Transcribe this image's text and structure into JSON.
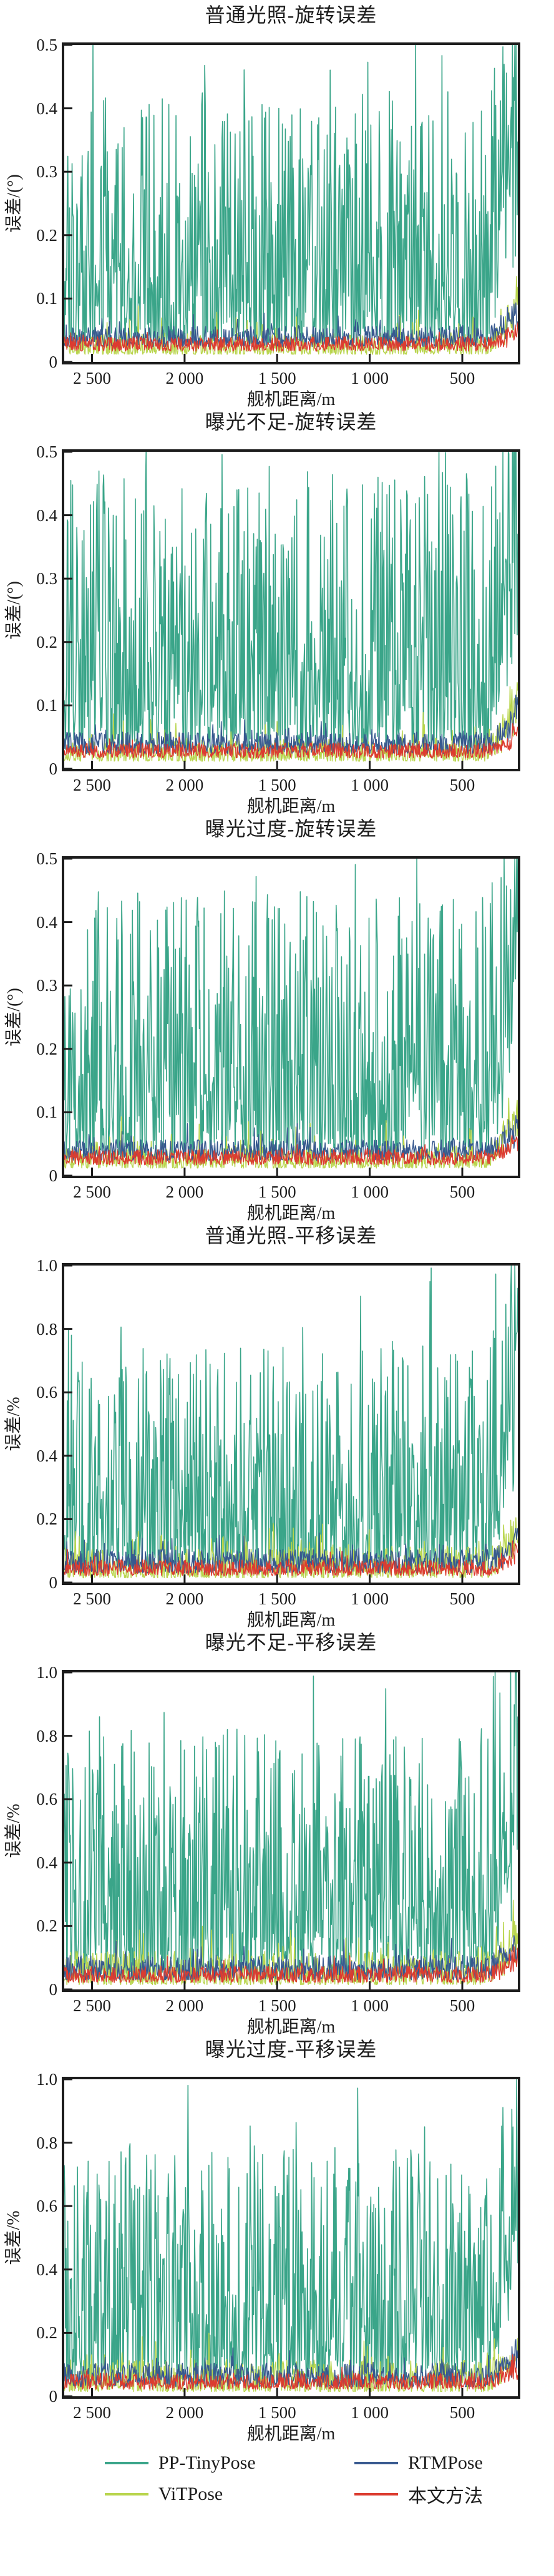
{
  "figure": {
    "background": "#ffffff"
  },
  "colors": {
    "axis": "#1c1c1c",
    "text": "#1c1c1c",
    "pp_tinypose": "#3aa589",
    "vitpose": "#b9d54e",
    "rtmpose": "#38598f",
    "ours": "#dc3c30"
  },
  "legend": {
    "items": [
      {
        "label": "PP-TinyPose",
        "color": "#3aa589"
      },
      {
        "label": "ViTPose",
        "color": "#b9d54e"
      },
      {
        "label": "RTMPose",
        "color": "#38598f"
      },
      {
        "label": "本文方法",
        "color": "#dc3c30"
      }
    ]
  },
  "chart_data": [
    {
      "type": "line",
      "title": "普通光照-旋转误差",
      "xlabel": "舰机距离/m",
      "ylabel": "误差/(°)",
      "x_axis": {
        "min": 2650,
        "max": 200,
        "reversed": true,
        "ticks": [
          2500,
          2000,
          1500,
          1000,
          500
        ],
        "tick_labels": [
          "2 500",
          "2 000",
          "1 500",
          "1 000",
          "500"
        ]
      },
      "y_axis": {
        "min": 0,
        "max": 0.5,
        "ticks": [
          0,
          0.1,
          0.2,
          0.3,
          0.4,
          0.5
        ],
        "tick_labels": [
          "0",
          "0.1",
          "0.2",
          "0.3",
          "0.4",
          "0.5"
        ]
      },
      "grid": false,
      "series": [
        {
          "name": "PP-TinyPose",
          "color": "#3aa589",
          "seed": 101,
          "n": 760,
          "base": 0.03,
          "amp": 0.4,
          "power": 2.3,
          "spike_prob": 0.08,
          "spike_amp": 0.15,
          "end_rise": 0.45
        },
        {
          "name": "ViTPose",
          "color": "#b9d54e",
          "seed": 102,
          "n": 700,
          "base": 0.012,
          "amp": 0.034,
          "power": 1.8,
          "spike_prob": 0.05,
          "spike_amp": 0.05,
          "end_rise": 0.1
        },
        {
          "name": "RTMPose",
          "color": "#38598f",
          "seed": 103,
          "n": 700,
          "base": 0.024,
          "amp": 0.032,
          "power": 1.4,
          "spike_prob": 0.04,
          "spike_amp": 0.028,
          "end_rise": 0.07
        },
        {
          "name": "本文方法",
          "color": "#dc3c30",
          "seed": 104,
          "n": 700,
          "base": 0.017,
          "amp": 0.023,
          "power": 1.3,
          "spike_prob": 0.02,
          "spike_amp": 0.02,
          "end_rise": 0.035
        }
      ]
    },
    {
      "type": "line",
      "title": "曝光不足-旋转误差",
      "xlabel": "舰机距离/m",
      "ylabel": "误差/(°)",
      "x_axis": {
        "min": 2650,
        "max": 200,
        "reversed": true,
        "ticks": [
          2500,
          2000,
          1500,
          1000,
          500
        ],
        "tick_labels": [
          "2 500",
          "2 000",
          "1 500",
          "1 000",
          "500"
        ]
      },
      "y_axis": {
        "min": 0,
        "max": 0.5,
        "ticks": [
          0,
          0.1,
          0.2,
          0.3,
          0.4,
          0.5
        ],
        "tick_labels": [
          "0",
          "0.1",
          "0.2",
          "0.3",
          "0.4",
          "0.5"
        ]
      },
      "grid": false,
      "series": [
        {
          "name": "PP-TinyPose",
          "color": "#3aa589",
          "seed": 201,
          "n": 760,
          "base": 0.03,
          "amp": 0.44,
          "power": 2.1,
          "spike_prob": 0.08,
          "spike_amp": 0.15,
          "end_rise": 0.42
        },
        {
          "name": "ViTPose",
          "color": "#b9d54e",
          "seed": 202,
          "n": 700,
          "base": 0.012,
          "amp": 0.036,
          "power": 1.8,
          "spike_prob": 0.05,
          "spike_amp": 0.05,
          "end_rise": 0.12
        },
        {
          "name": "RTMPose",
          "color": "#38598f",
          "seed": 203,
          "n": 700,
          "base": 0.024,
          "amp": 0.034,
          "power": 1.4,
          "spike_prob": 0.04,
          "spike_amp": 0.03,
          "end_rise": 0.07
        },
        {
          "name": "本文方法",
          "color": "#dc3c30",
          "seed": 204,
          "n": 700,
          "base": 0.017,
          "amp": 0.024,
          "power": 1.3,
          "spike_prob": 0.02,
          "spike_amp": 0.02,
          "end_rise": 0.04
        }
      ]
    },
    {
      "type": "line",
      "title": "曝光过度-旋转误差",
      "xlabel": "舰机距离/m",
      "ylabel": "误差/(°)",
      "x_axis": {
        "min": 2650,
        "max": 200,
        "reversed": true,
        "ticks": [
          2500,
          2000,
          1500,
          1000,
          500
        ],
        "tick_labels": [
          "2 500",
          "2 000",
          "1 500",
          "1 000",
          "500"
        ]
      },
      "y_axis": {
        "min": 0,
        "max": 0.5,
        "ticks": [
          0,
          0.1,
          0.2,
          0.3,
          0.4,
          0.5
        ],
        "tick_labels": [
          "0",
          "0.1",
          "0.2",
          "0.3",
          "0.4",
          "0.5"
        ]
      },
      "grid": false,
      "series": [
        {
          "name": "PP-TinyPose",
          "color": "#3aa589",
          "seed": 301,
          "n": 760,
          "base": 0.03,
          "amp": 0.42,
          "power": 2.2,
          "spike_prob": 0.08,
          "spike_amp": 0.15,
          "end_rise": 0.44
        },
        {
          "name": "ViTPose",
          "color": "#b9d54e",
          "seed": 302,
          "n": 700,
          "base": 0.012,
          "amp": 0.035,
          "power": 1.8,
          "spike_prob": 0.05,
          "spike_amp": 0.05,
          "end_rise": 0.11
        },
        {
          "name": "RTMPose",
          "color": "#38598f",
          "seed": 303,
          "n": 700,
          "base": 0.024,
          "amp": 0.033,
          "power": 1.4,
          "spike_prob": 0.04,
          "spike_amp": 0.03,
          "end_rise": 0.07
        },
        {
          "name": "本文方法",
          "color": "#dc3c30",
          "seed": 304,
          "n": 700,
          "base": 0.017,
          "amp": 0.024,
          "power": 1.3,
          "spike_prob": 0.02,
          "spike_amp": 0.02,
          "end_rise": 0.04
        }
      ]
    },
    {
      "type": "line",
      "title": "普通光照-平移误差",
      "xlabel": "舰机距离/m",
      "ylabel": "误差/%",
      "x_axis": {
        "min": 2650,
        "max": 200,
        "reversed": true,
        "ticks": [
          2500,
          2000,
          1500,
          1000,
          500
        ],
        "tick_labels": [
          "2 500",
          "2 000",
          "1 500",
          "1 000",
          "500"
        ]
      },
      "y_axis": {
        "min": 0,
        "max": 1.0,
        "ticks": [
          0,
          0.2,
          0.4,
          0.6,
          0.8,
          1.0
        ],
        "tick_labels": [
          "0",
          "0.2",
          "0.4",
          "0.6",
          "0.8",
          "1.0"
        ]
      },
      "grid": false,
      "series": [
        {
          "name": "PP-TinyPose",
          "color": "#3aa589",
          "seed": 401,
          "n": 760,
          "base": 0.05,
          "amp": 0.7,
          "power": 2.4,
          "spike_prob": 0.08,
          "spike_amp": 0.28,
          "end_rise": 0.8
        },
        {
          "name": "ViTPose",
          "color": "#b9d54e",
          "seed": 402,
          "n": 700,
          "base": 0.015,
          "amp": 0.1,
          "power": 2.0,
          "spike_prob": 0.06,
          "spike_amp": 0.12,
          "end_rise": 0.16
        },
        {
          "name": "RTMPose",
          "color": "#38598f",
          "seed": 403,
          "n": 700,
          "base": 0.03,
          "amp": 0.075,
          "power": 1.5,
          "spike_prob": 0.05,
          "spike_amp": 0.06,
          "end_rise": 0.12
        },
        {
          "name": "本文方法",
          "color": "#dc3c30",
          "seed": 404,
          "n": 700,
          "base": 0.022,
          "amp": 0.05,
          "power": 1.4,
          "spike_prob": 0.03,
          "spike_amp": 0.04,
          "end_rise": 0.08
        }
      ]
    },
    {
      "type": "line",
      "title": "曝光不足-平移误差",
      "xlabel": "舰机距离/m",
      "ylabel": "误差/%",
      "x_axis": {
        "min": 2650,
        "max": 200,
        "reversed": true,
        "ticks": [
          2500,
          2000,
          1500,
          1000,
          500
        ],
        "tick_labels": [
          "2 500",
          "2 000",
          "1 500",
          "1 000",
          "500"
        ]
      },
      "y_axis": {
        "min": 0,
        "max": 1.0,
        "ticks": [
          0,
          0.2,
          0.4,
          0.6,
          0.8,
          1.0
        ],
        "tick_labels": [
          "0",
          "0.2",
          "0.4",
          "0.6",
          "0.8",
          "1.0"
        ]
      },
      "grid": false,
      "series": [
        {
          "name": "PP-TinyPose",
          "color": "#3aa589",
          "seed": 501,
          "n": 760,
          "base": 0.05,
          "amp": 0.78,
          "power": 2.2,
          "spike_prob": 0.08,
          "spike_amp": 0.26,
          "end_rise": 0.75
        },
        {
          "name": "ViTPose",
          "color": "#b9d54e",
          "seed": 502,
          "n": 700,
          "base": 0.015,
          "amp": 0.105,
          "power": 2.0,
          "spike_prob": 0.06,
          "spike_amp": 0.12,
          "end_rise": 0.17
        },
        {
          "name": "RTMPose",
          "color": "#38598f",
          "seed": 503,
          "n": 700,
          "base": 0.03,
          "amp": 0.078,
          "power": 1.5,
          "spike_prob": 0.05,
          "spike_amp": 0.06,
          "end_rise": 0.13
        },
        {
          "name": "本文方法",
          "color": "#dc3c30",
          "seed": 504,
          "n": 700,
          "base": 0.022,
          "amp": 0.052,
          "power": 1.4,
          "spike_prob": 0.03,
          "spike_amp": 0.04,
          "end_rise": 0.09
        }
      ]
    },
    {
      "type": "line",
      "title": "曝光过度-平移误差",
      "xlabel": "舰机距离/m",
      "ylabel": "误差/%",
      "x_axis": {
        "min": 2650,
        "max": 200,
        "reversed": true,
        "ticks": [
          2500,
          2000,
          1500,
          1000,
          500
        ],
        "tick_labels": [
          "2 500",
          "2 000",
          "1 500",
          "1 000",
          "500"
        ]
      },
      "y_axis": {
        "min": 0,
        "max": 1.0,
        "ticks": [
          0,
          0.2,
          0.4,
          0.6,
          0.8,
          1.0
        ],
        "tick_labels": [
          "0",
          "0.2",
          "0.4",
          "0.6",
          "0.8",
          "1.0"
        ]
      },
      "grid": false,
      "series": [
        {
          "name": "PP-TinyPose",
          "color": "#3aa589",
          "seed": 601,
          "n": 760,
          "base": 0.05,
          "amp": 0.75,
          "power": 2.3,
          "spike_prob": 0.08,
          "spike_amp": 0.27,
          "end_rise": 0.78
        },
        {
          "name": "ViTPose",
          "color": "#b9d54e",
          "seed": 602,
          "n": 700,
          "base": 0.015,
          "amp": 0.1,
          "power": 2.0,
          "spike_prob": 0.06,
          "spike_amp": 0.12,
          "end_rise": 0.16
        },
        {
          "name": "RTMPose",
          "color": "#38598f",
          "seed": 603,
          "n": 700,
          "base": 0.03,
          "amp": 0.076,
          "power": 1.5,
          "spike_prob": 0.05,
          "spike_amp": 0.06,
          "end_rise": 0.12
        },
        {
          "name": "本文方法",
          "color": "#dc3c30",
          "seed": 604,
          "n": 700,
          "base": 0.022,
          "amp": 0.051,
          "power": 1.4,
          "spike_prob": 0.03,
          "spike_amp": 0.04,
          "end_rise": 0.08
        }
      ]
    }
  ]
}
